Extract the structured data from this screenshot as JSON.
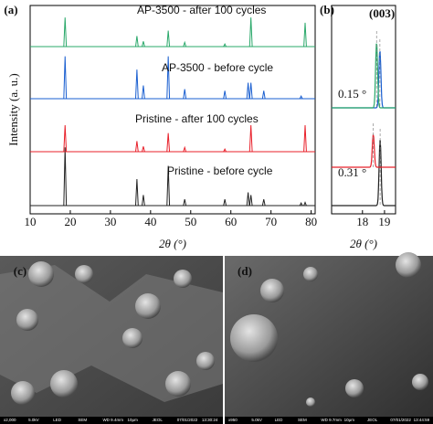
{
  "chart_data": [
    {
      "type": "peaks",
      "panel_label": "(a)",
      "x_label": "2θ (°)",
      "y_label": "Intensity (a. u.)",
      "xlim": [
        10,
        81
      ],
      "xticks": [
        10,
        20,
        30,
        40,
        50,
        60,
        70,
        80
      ],
      "series": [
        {
          "name": "Pristine - before cycle",
          "color": "#222222",
          "x": [
            18.7,
            36.6,
            38.2,
            44.4,
            48.5,
            58.5,
            64.3,
            65.0,
            68.2,
            77.5,
            78.5
          ],
          "values": [
            1.1,
            0.5,
            0.2,
            0.75,
            0.12,
            0.12,
            0.25,
            0.2,
            0.12,
            0.05,
            0.06
          ]
        },
        {
          "name": "Pristine - after 100 cycles",
          "color": "#e8202a",
          "x": [
            18.7,
            36.6,
            38.2,
            44.4,
            48.5,
            58.5,
            65.0,
            78.5
          ],
          "values": [
            0.5,
            0.2,
            0.1,
            0.35,
            0.08,
            0.05,
            0.5,
            0.5
          ]
        },
        {
          "name": "AP-3500 - before cycle",
          "color": "#1a5fd0",
          "x": [
            18.7,
            36.6,
            38.2,
            44.4,
            48.5,
            58.5,
            64.3,
            65.0,
            68.2,
            77.5
          ],
          "values": [
            0.8,
            0.55,
            0.25,
            0.8,
            0.18,
            0.15,
            0.3,
            0.3,
            0.15,
            0.05
          ]
        },
        {
          "name": "AP-3500 - after 100 cycles",
          "color": "#2aa86a",
          "x": [
            18.7,
            36.6,
            38.2,
            44.4,
            48.5,
            58.5,
            65.0,
            78.5
          ],
          "values": [
            0.55,
            0.2,
            0.1,
            0.3,
            0.08,
            0.05,
            0.55,
            0.45
          ]
        }
      ]
    },
    {
      "type": "zoom",
      "panel_label": "(b)",
      "x_label": "2θ (°)",
      "peak_label": "(003)",
      "xlim": [
        16.6,
        19.5
      ],
      "xticks": [
        18,
        19
      ],
      "annotations": [
        "0.31 °",
        "0.15 °"
      ],
      "series": [
        {
          "color": "#222222",
          "x": [
            18.8
          ],
          "values": [
            1.2
          ]
        },
        {
          "color": "#e8202a",
          "x": [
            18.49
          ],
          "values": [
            0.6
          ]
        },
        {
          "color": "#1a5fd0",
          "x": [
            18.79
          ],
          "values": [
            1.05
          ]
        },
        {
          "color": "#2aa86a",
          "x": [
            18.64
          ],
          "values": [
            1.2
          ]
        }
      ]
    }
  ],
  "images": [
    {
      "label": "(c)",
      "info": [
        "x2,000",
        "5.0kV",
        "LED",
        "SEM",
        "WD 9.4mm",
        "10μm",
        "JEOL",
        "07/01/2022",
        "13:30:24"
      ]
    },
    {
      "label": "(d)",
      "info": [
        "x950",
        "5.0kV",
        "LED",
        "SEM",
        "WD 9.7mm",
        "10μm",
        "JEOL",
        "07/01/2022",
        "13:44:59"
      ]
    }
  ]
}
